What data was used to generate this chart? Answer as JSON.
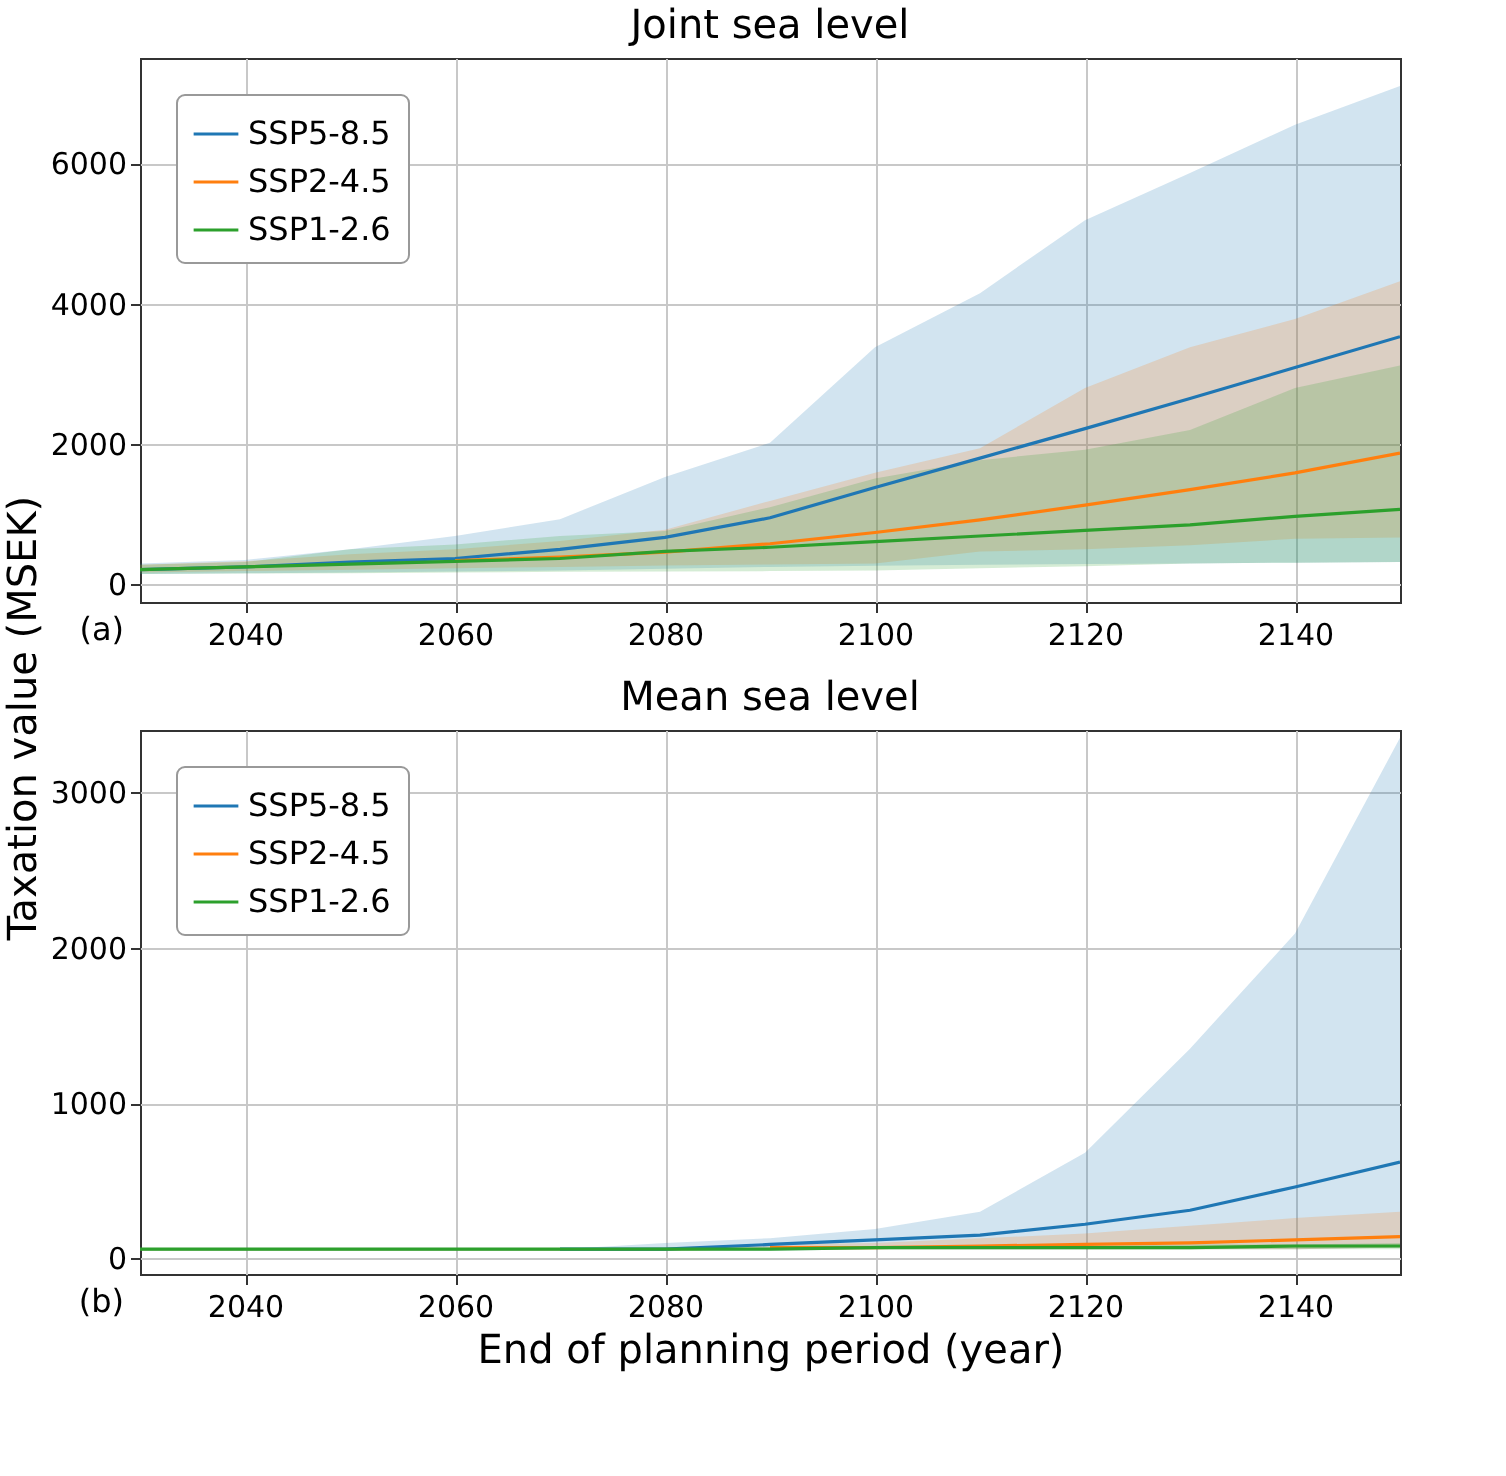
{
  "chart_data": [
    {
      "type": "line",
      "title": "Joint sea level",
      "ylabel": "Taxation value (MSEK)",
      "annotations": [
        "(a)"
      ],
      "x": [
        2030,
        2040,
        2050,
        2060,
        2070,
        2080,
        2090,
        2100,
        2110,
        2120,
        2130,
        2140,
        2150
      ],
      "xlim": [
        2030,
        2150
      ],
      "xticks": [
        2040,
        2060,
        2080,
        2100,
        2120,
        2140
      ],
      "ylim": [
        -250,
        7500
      ],
      "yticks": [
        0,
        2000,
        4000,
        6000
      ],
      "grid": true,
      "legend": "top left",
      "series": [
        {
          "name": "SSP5-8.5",
          "color": "#1f77b4",
          "values": [
            210,
            250,
            320,
            370,
            500,
            670,
            950,
            1380,
            1800,
            2220,
            2650,
            3090,
            3530
          ],
          "lower": [
            150,
            160,
            170,
            185,
            200,
            225,
            250,
            265,
            280,
            290,
            300,
            310,
            320
          ],
          "upper": [
            300,
            350,
            500,
            690,
            930,
            1530,
            2020,
            3380,
            4150,
            5190,
            5860,
            6550,
            7100
          ]
        },
        {
          "name": "SSP2-4.5",
          "color": "#ff7f0e",
          "values": [
            null,
            null,
            null,
            340,
            390,
            460,
            580,
            740,
            920,
            1130,
            1350,
            1590,
            1870
          ],
          "lower": [
            170,
            190,
            210,
            230,
            250,
            270,
            285,
            300,
            470,
            500,
            560,
            650,
            670
          ],
          "upper": [
            280,
            330,
            430,
            500,
            620,
            780,
            1190,
            1590,
            1940,
            2800,
            3380,
            3780,
            4320
          ]
        },
        {
          "name": "SSP1-2.6",
          "color": "#2ca02c",
          "values": [
            210,
            250,
            290,
            330,
            370,
            470,
            530,
            610,
            690,
            770,
            850,
            970,
            1070
          ],
          "lower": [
            150,
            155,
            160,
            170,
            180,
            185,
            190,
            200,
            230,
            260,
            300,
            310,
            320
          ],
          "upper": [
            280,
            320,
            500,
            570,
            690,
            760,
            1100,
            1510,
            1770,
            1920,
            2200,
            2800,
            3120
          ]
        }
      ]
    },
    {
      "type": "line",
      "title": "Mean sea level",
      "xlabel": "End of planning period (year)",
      "annotations": [
        "(b)"
      ],
      "x": [
        2030,
        2040,
        2050,
        2060,
        2070,
        2080,
        2090,
        2100,
        2110,
        2120,
        2130,
        2140,
        2150
      ],
      "xlim": [
        2030,
        2150
      ],
      "xticks": [
        2040,
        2060,
        2080,
        2100,
        2120,
        2140
      ],
      "ylim": [
        -100,
        3400
      ],
      "yticks": [
        0,
        1000,
        2000,
        3000
      ],
      "grid": true,
      "legend": "top left",
      "series": [
        {
          "name": "SSP5-8.5",
          "color": "#1f77b4",
          "values": [
            null,
            null,
            null,
            null,
            60,
            60,
            90,
            120,
            150,
            220,
            310,
            460,
            620
          ],
          "lower": [
            50,
            50,
            50,
            50,
            50,
            50,
            50,
            60,
            60,
            60,
            60,
            60,
            70
          ],
          "upper": [
            60,
            60,
            60,
            60,
            60,
            100,
            130,
            190,
            300,
            680,
            1350,
            2090,
            3350
          ]
        },
        {
          "name": "SSP2-4.5",
          "color": "#ff7f0e",
          "values": [
            null,
            null,
            null,
            null,
            null,
            null,
            70,
            70,
            80,
            90,
            100,
            120,
            140
          ],
          "lower": [
            50,
            50,
            50,
            50,
            50,
            50,
            60,
            60,
            60,
            60,
            60,
            60,
            70
          ],
          "upper": [
            60,
            60,
            60,
            60,
            60,
            70,
            90,
            100,
            130,
            160,
            210,
            260,
            300
          ]
        },
        {
          "name": "SSP1-2.6",
          "color": "#2ca02c",
          "values": [
            60,
            60,
            60,
            60,
            60,
            60,
            60,
            70,
            70,
            70,
            70,
            80,
            80
          ],
          "lower": [
            50,
            50,
            50,
            50,
            50,
            50,
            60,
            60,
            60,
            60,
            60,
            60,
            60
          ],
          "upper": [
            60,
            60,
            60,
            60,
            60,
            60,
            70,
            70,
            80,
            80,
            90,
            90,
            100
          ]
        }
      ]
    }
  ]
}
